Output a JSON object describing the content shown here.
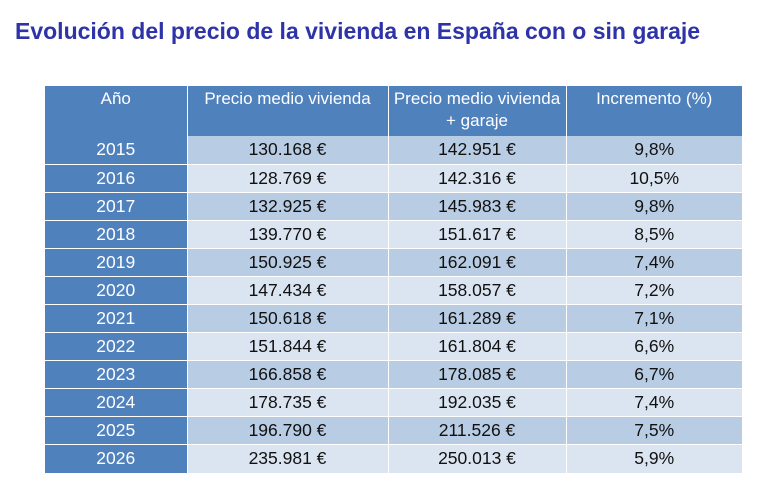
{
  "title": "Evolución del precio de la vivienda en España con o sin garaje",
  "colors": {
    "title": "#2e34a8",
    "header_bg": "#4f81bd",
    "row_dark": "#b8cce4",
    "row_light": "#dbe5f1"
  },
  "table": {
    "headers": {
      "year": "Año",
      "price": "Precio medio vivienda",
      "price_garage": "Precio medio vivienda + garaje",
      "increase": "Incremento (%)"
    },
    "rows": [
      {
        "year": "2015",
        "price": "130.168 €",
        "price_garage": "142.951 €",
        "increase": "9,8%"
      },
      {
        "year": "2016",
        "price": "128.769 €",
        "price_garage": "142.316 €",
        "increase": "10,5%"
      },
      {
        "year": "2017",
        "price": "132.925 €",
        "price_garage": "145.983 €",
        "increase": "9,8%"
      },
      {
        "year": "2018",
        "price": "139.770 €",
        "price_garage": "151.617 €",
        "increase": "8,5%"
      },
      {
        "year": "2019",
        "price": "150.925 €",
        "price_garage": "162.091 €",
        "increase": "7,4%"
      },
      {
        "year": "2020",
        "price": "147.434 €",
        "price_garage": "158.057 €",
        "increase": "7,2%"
      },
      {
        "year": "2021",
        "price": "150.618 €",
        "price_garage": "161.289 €",
        "increase": "7,1%"
      },
      {
        "year": "2022",
        "price": "151.844 €",
        "price_garage": "161.804 €",
        "increase": "6,6%"
      },
      {
        "year": "2023",
        "price": "166.858 €",
        "price_garage": "178.085 €",
        "increase": "6,7%"
      },
      {
        "year": "2024",
        "price": "178.735 €",
        "price_garage": "192.035 €",
        "increase": "7,4%"
      },
      {
        "year": "2025",
        "price": "196.790 €",
        "price_garage": "211.526 €",
        "increase": "7,5%"
      },
      {
        "year": "2026",
        "price": "235.981 €",
        "price_garage": "250.013 €",
        "increase": "5,9%"
      }
    ]
  }
}
